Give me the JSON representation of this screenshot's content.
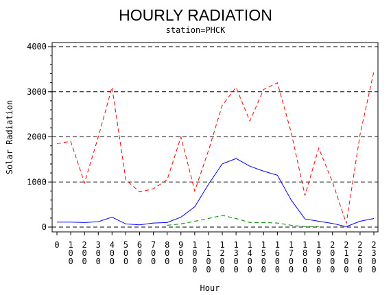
{
  "chart_data": {
    "type": "line",
    "title": "HOURLY RADIATION",
    "subtitle": "station=PHCK",
    "xlabel": "Hour",
    "ylabel": "Solar Radiation",
    "ylim": [
      0,
      4000
    ],
    "yticks": [
      0,
      1000,
      2000,
      3000,
      4000
    ],
    "ytick_labels": [
      "0",
      "1000",
      "2000",
      "3000",
      "4000"
    ],
    "grid": "horizontal dashed at each y tick",
    "legend": "none",
    "x": [
      0,
      100,
      200,
      300,
      400,
      500,
      600,
      700,
      800,
      900,
      1000,
      1100,
      1200,
      1300,
      1400,
      1500,
      1600,
      1700,
      1800,
      1900,
      2000,
      2100,
      2200,
      2300
    ],
    "xtick_labels": [
      "0",
      "100",
      "200",
      "300",
      "400",
      "500",
      "600",
      "700",
      "800",
      "900",
      "1000",
      "1100",
      "1200",
      "1300",
      "1400",
      "1500",
      "1600",
      "1700",
      "1800",
      "1900",
      "2000",
      "2100",
      "2200",
      "2300"
    ],
    "series": [
      {
        "color": "#ff0000",
        "dash": "dashed",
        "values": [
          1850,
          1900,
          980,
          2000,
          3100,
          1050,
          780,
          850,
          1050,
          2000,
          800,
          1700,
          2700,
          3100,
          2350,
          3050,
          3200,
          2100,
          700,
          1750,
          1000,
          80,
          2050,
          3450
        ]
      },
      {
        "color": "#0000ff",
        "dash": "solid",
        "values": [
          110,
          110,
          100,
          120,
          220,
          70,
          50,
          90,
          100,
          220,
          450,
          950,
          1400,
          1520,
          1350,
          1240,
          1150,
          600,
          180,
          130,
          80,
          10,
          130,
          190
        ]
      },
      {
        "color": "#008000",
        "dash": "dashed",
        "values": [
          null,
          null,
          null,
          null,
          null,
          null,
          null,
          null,
          40,
          70,
          130,
          190,
          260,
          190,
          100,
          100,
          90,
          40,
          10,
          10,
          null,
          null,
          null,
          null
        ]
      }
    ]
  }
}
